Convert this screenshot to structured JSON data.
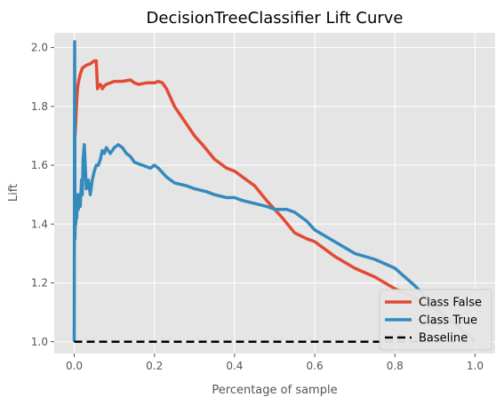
{
  "chart_data": {
    "type": "line",
    "title": "DecisionTreeClassifier Lift Curve",
    "xlabel": "Percentage of sample",
    "ylabel": "Lift",
    "xlim": [
      -0.05,
      1.05
    ],
    "ylim": [
      0.96,
      2.05
    ],
    "xticks": [
      0.0,
      0.2,
      0.4,
      0.6,
      0.8,
      1.0
    ],
    "xtick_labels": [
      "0.0",
      "0.2",
      "0.4",
      "0.6",
      "0.8",
      "1.0"
    ],
    "yticks": [
      1.0,
      1.2,
      1.4,
      1.6,
      1.8,
      2.0
    ],
    "ytick_labels": [
      "1.0",
      "1.2",
      "1.4",
      "1.6",
      "1.8",
      "2.0"
    ],
    "grid": true,
    "legend_position": "lower-right",
    "series": [
      {
        "name": "Class False",
        "color": "#e24a33",
        "x": [
          0.002,
          0.004,
          0.006,
          0.008,
          0.01,
          0.015,
          0.02,
          0.03,
          0.04,
          0.05,
          0.055,
          0.058,
          0.06,
          0.065,
          0.07,
          0.075,
          0.08,
          0.09,
          0.1,
          0.12,
          0.14,
          0.15,
          0.16,
          0.18,
          0.2,
          0.21,
          0.22,
          0.23,
          0.25,
          0.27,
          0.3,
          0.32,
          0.35,
          0.38,
          0.4,
          0.42,
          0.45,
          0.48,
          0.5,
          0.52,
          0.55,
          0.58,
          0.6,
          0.65,
          0.7,
          0.75,
          0.8,
          0.85,
          0.9,
          0.95,
          1.0
        ],
        "y": [
          1.7,
          1.75,
          1.82,
          1.86,
          1.88,
          1.91,
          1.93,
          1.94,
          1.945,
          1.955,
          1.955,
          1.86,
          1.87,
          1.875,
          1.86,
          1.87,
          1.875,
          1.88,
          1.885,
          1.885,
          1.89,
          1.88,
          1.875,
          1.88,
          1.88,
          1.885,
          1.88,
          1.86,
          1.8,
          1.76,
          1.7,
          1.67,
          1.62,
          1.59,
          1.58,
          1.56,
          1.53,
          1.48,
          1.45,
          1.42,
          1.37,
          1.35,
          1.34,
          1.29,
          1.25,
          1.22,
          1.18,
          1.15,
          1.11,
          1.06,
          1.0
        ]
      },
      {
        "name": "Class True",
        "color": "#348abd",
        "x": [
          0.0,
          0.001,
          0.002,
          0.003,
          0.004,
          0.005,
          0.006,
          0.008,
          0.01,
          0.012,
          0.015,
          0.018,
          0.02,
          0.022,
          0.025,
          0.03,
          0.035,
          0.04,
          0.045,
          0.05,
          0.055,
          0.06,
          0.065,
          0.07,
          0.075,
          0.08,
          0.09,
          0.1,
          0.11,
          0.12,
          0.13,
          0.14,
          0.15,
          0.17,
          0.19,
          0.2,
          0.21,
          0.23,
          0.25,
          0.28,
          0.3,
          0.33,
          0.35,
          0.38,
          0.4,
          0.42,
          0.45,
          0.48,
          0.5,
          0.53,
          0.55,
          0.58,
          0.6,
          0.65,
          0.7,
          0.75,
          0.8,
          0.85,
          0.9,
          0.95,
          1.0
        ],
        "y": [
          1.0,
          2.02,
          1.35,
          1.5,
          1.4,
          1.48,
          1.42,
          1.5,
          1.45,
          1.5,
          1.46,
          1.55,
          1.5,
          1.62,
          1.67,
          1.52,
          1.55,
          1.5,
          1.55,
          1.58,
          1.6,
          1.6,
          1.62,
          1.65,
          1.64,
          1.66,
          1.64,
          1.66,
          1.67,
          1.66,
          1.64,
          1.63,
          1.61,
          1.6,
          1.59,
          1.6,
          1.59,
          1.56,
          1.54,
          1.53,
          1.52,
          1.51,
          1.5,
          1.49,
          1.49,
          1.48,
          1.47,
          1.46,
          1.45,
          1.45,
          1.44,
          1.41,
          1.38,
          1.34,
          1.3,
          1.28,
          1.25,
          1.19,
          1.12,
          1.06,
          1.0
        ]
      },
      {
        "name": "Baseline",
        "color": "#000000",
        "dashed": true,
        "x": [
          0.0,
          1.0
        ],
        "y": [
          1.0,
          1.0
        ]
      }
    ]
  }
}
